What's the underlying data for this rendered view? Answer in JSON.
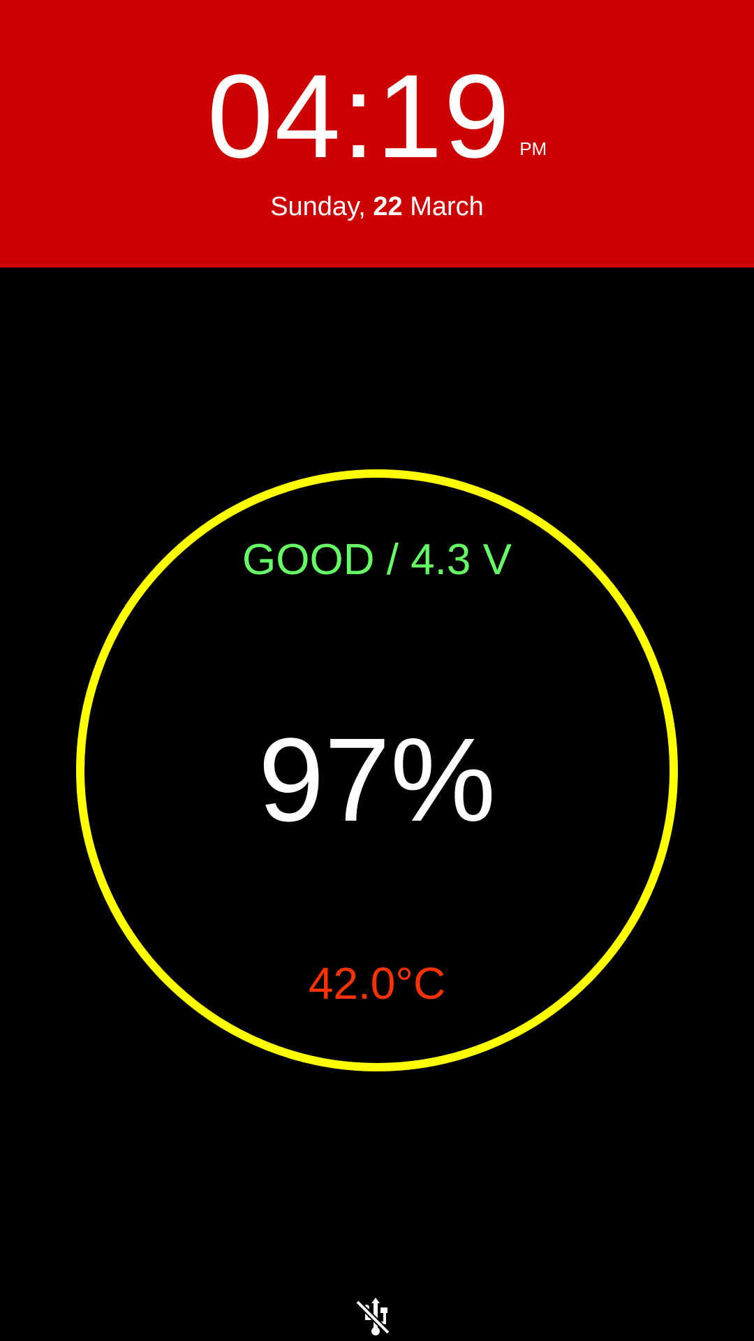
{
  "header": {
    "time": "04:19",
    "ampm": "PM",
    "weekday": "Sunday,",
    "day": "22",
    "month": "March"
  },
  "battery": {
    "health_text": "GOOD / 4.3 V",
    "percent_text": "97%",
    "temperature_text": "42.0°C"
  },
  "footer": {
    "icon": "usb-disconnected-icon"
  },
  "colors": {
    "header_bg": "#cc0000",
    "ring": "#ffff00",
    "health": "#66ff66",
    "temperature": "#ff3300",
    "text": "#ffffff",
    "background": "#000000"
  }
}
